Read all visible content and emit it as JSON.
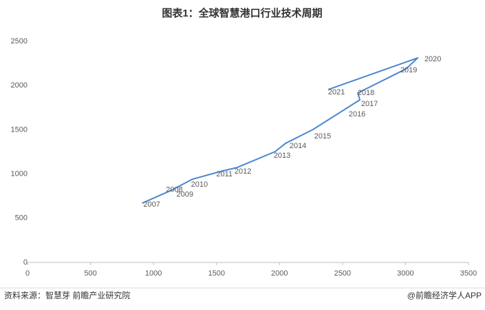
{
  "chart_data": {
    "type": "line",
    "title": "图表1：全球智慧港口行业技术周期",
    "source": "资料来源：智慧芽 前瞻产业研究院",
    "credit": "@前瞻经济学人APP",
    "color": "#4a86d0",
    "x": [
      910,
      1100,
      1140,
      1310,
      1530,
      1666,
      1966,
      2048,
      2266,
      2594,
      2638,
      2621,
      3004,
      3097,
      2387
    ],
    "values": [
      670,
      790,
      815,
      942,
      1028,
      1075,
      1254,
      1347,
      1503,
      1799,
      1838,
      1916,
      2188,
      2313,
      1955
    ],
    "point_labels": [
      "2007",
      "2008",
      "2009",
      "2010",
      "2011",
      "2012",
      "2013",
      "2014",
      "2015",
      "2016",
      "2017",
      "2018",
      "2019",
      "2020",
      "2021"
    ],
    "xlim": [
      0,
      3500
    ],
    "xticks": [
      0,
      500,
      1000,
      1500,
      2000,
      2500,
      3000,
      3500
    ],
    "ylim": [
      0,
      2500
    ],
    "yticks": [
      0,
      500,
      1000,
      1500,
      2000,
      2500
    ],
    "grid": false
  }
}
